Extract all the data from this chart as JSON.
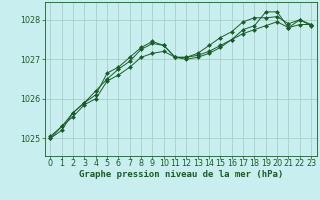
{
  "bg_color": "#c8eef0",
  "grid_color": "#a0ccbb",
  "line_color": "#1a5c28",
  "marker_color": "#1a5c28",
  "xlabel": "Graphe pression niveau de la mer (hPa)",
  "xlabel_fontsize": 6.5,
  "tick_fontsize": 5.8,
  "ylim": [
    1024.55,
    1028.45
  ],
  "yticks": [
    1025,
    1026,
    1027,
    1028
  ],
  "xlim": [
    -0.5,
    23.5
  ],
  "xticks": [
    0,
    1,
    2,
    3,
    4,
    5,
    6,
    7,
    8,
    9,
    10,
    11,
    12,
    13,
    14,
    15,
    16,
    17,
    18,
    19,
    20,
    21,
    22,
    23
  ],
  "series": [
    [
      1025.05,
      1025.3,
      1025.55,
      1025.85,
      1026.0,
      1026.45,
      1026.6,
      1026.8,
      1027.05,
      1027.15,
      1027.2,
      1027.05,
      1027.05,
      1027.1,
      1027.2,
      1027.35,
      1027.5,
      1027.65,
      1027.75,
      1027.85,
      1027.95,
      1027.8,
      1028.0,
      1027.85
    ],
    [
      1025.0,
      1025.2,
      1025.65,
      1025.9,
      1026.2,
      1026.5,
      1026.75,
      1026.95,
      1027.25,
      1027.4,
      1027.35,
      1027.05,
      1027.0,
      1027.05,
      1027.15,
      1027.3,
      1027.5,
      1027.75,
      1027.85,
      1028.2,
      1028.2,
      1027.8,
      1027.88,
      1027.88
    ],
    [
      1025.0,
      1025.3,
      1025.65,
      1025.9,
      1026.1,
      1026.65,
      1026.8,
      1027.05,
      1027.3,
      1027.45,
      1027.35,
      1027.05,
      1027.05,
      1027.15,
      1027.35,
      1027.55,
      1027.7,
      1027.95,
      1028.05,
      1028.05,
      1028.08,
      1027.9,
      1028.0,
      1027.88
    ]
  ]
}
